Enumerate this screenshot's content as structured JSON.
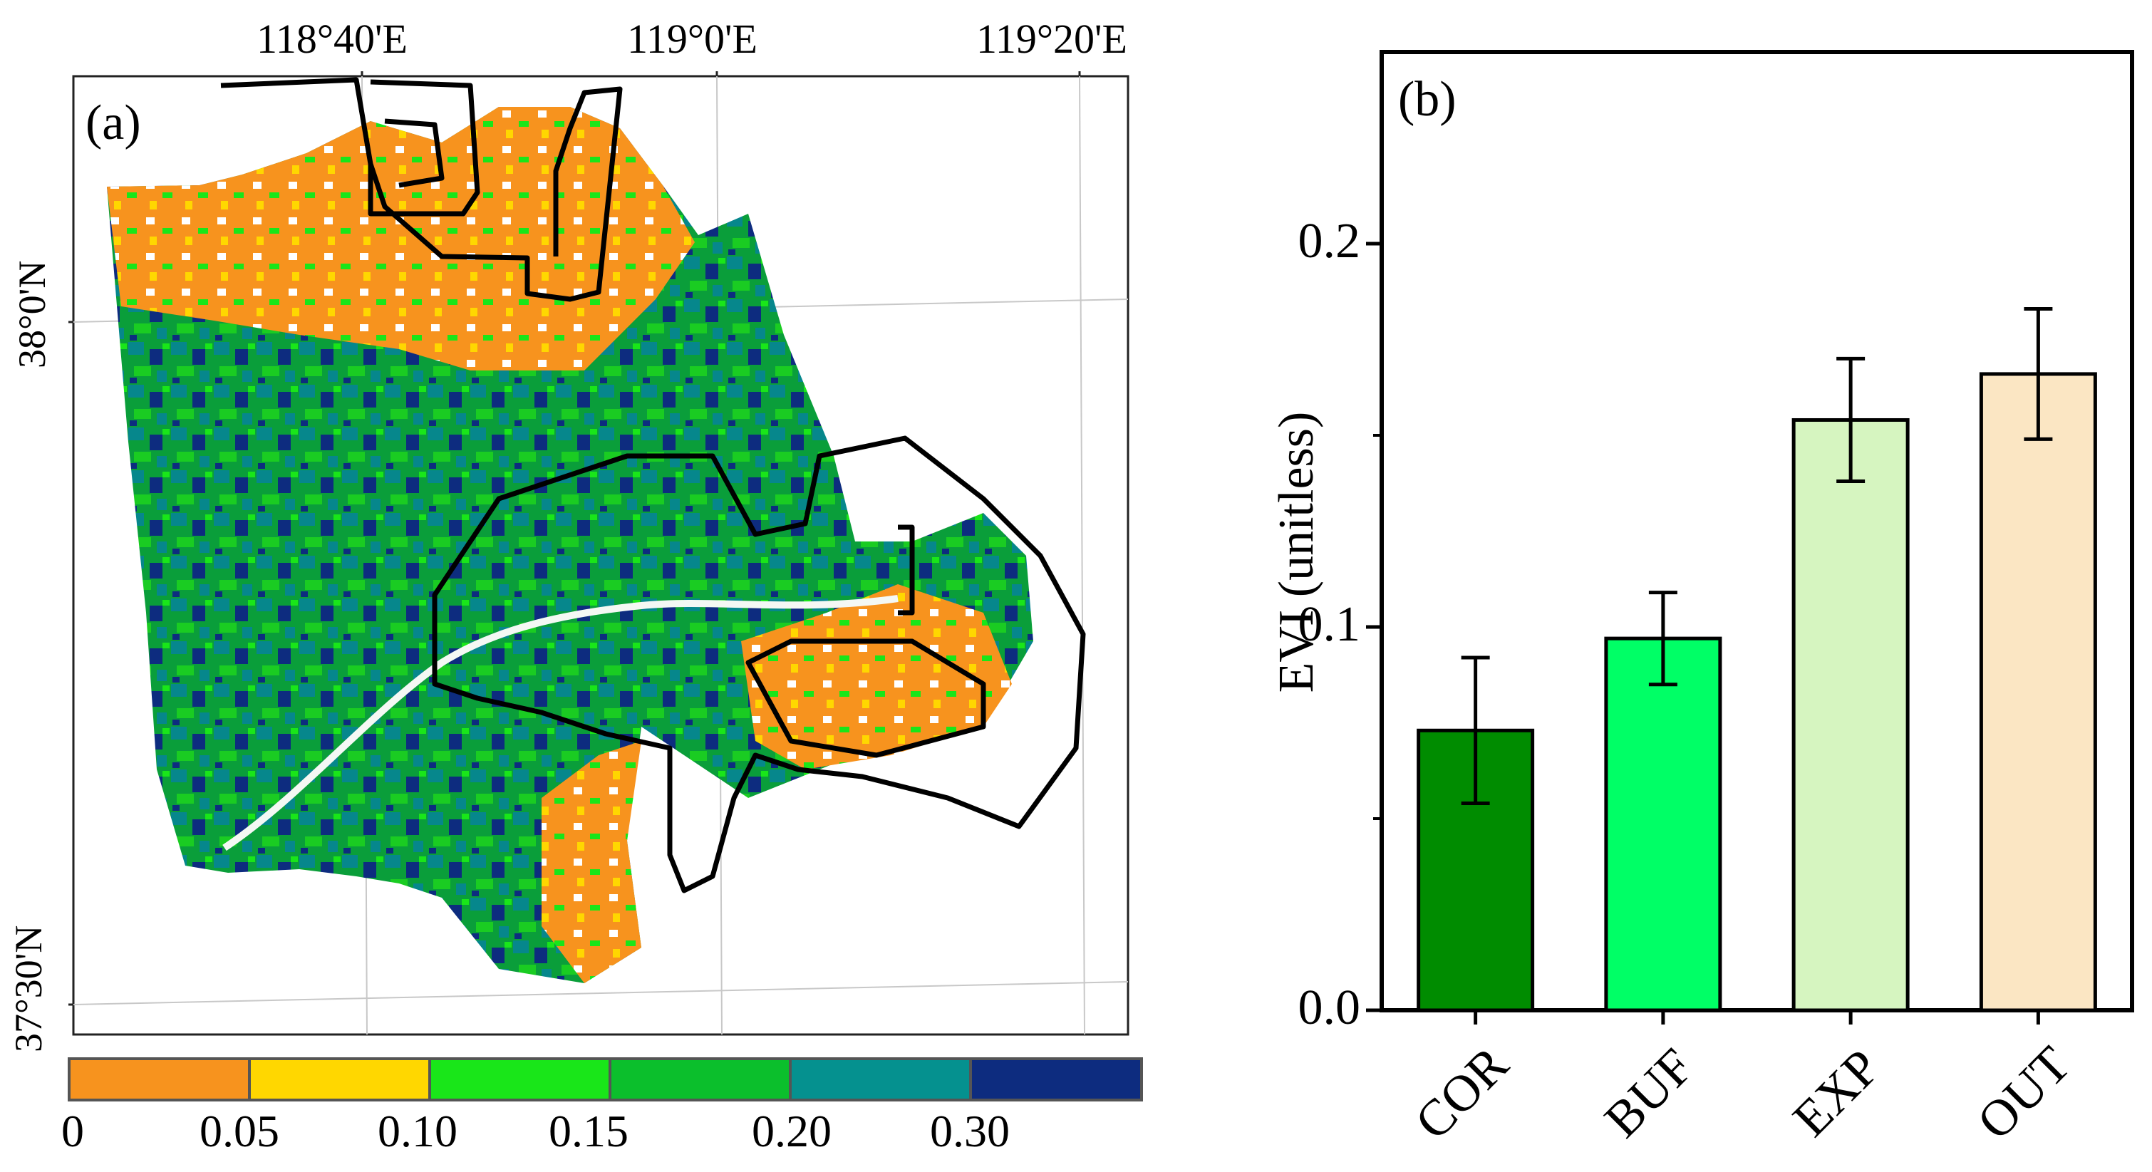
{
  "panel_a": {
    "label": "(a)",
    "lon_ticks": [
      "118°40'E",
      "119°0'E",
      "119°20'E"
    ],
    "lat_ticks": [
      "38°0'N",
      "37°30'N"
    ],
    "legend": {
      "colors": [
        "#F7931E",
        "#FFD700",
        "#19E619",
        "#0BBF2C",
        "#05918F",
        "#0D2C7F"
      ],
      "labels": [
        "0",
        "0.05",
        "0.10",
        "0.15",
        "0.20",
        "0.30"
      ]
    }
  },
  "chart_data": {
    "type": "bar",
    "panel_label": "(b)",
    "categories": [
      "COR",
      "BUF",
      "EXP",
      "OUT"
    ],
    "values": [
      0.073,
      0.097,
      0.154,
      0.166
    ],
    "errors": [
      0.019,
      0.012,
      0.016,
      0.017
    ],
    "colors": [
      "#008C00",
      "#00FF66",
      "#D6F5C0",
      "#FBE6C3"
    ],
    "ylabel": "EVI (unitless)",
    "xlabel": "",
    "ylim": [
      0,
      0.25
    ],
    "yticks": [
      "0.0",
      "0.1",
      "0.2"
    ]
  }
}
